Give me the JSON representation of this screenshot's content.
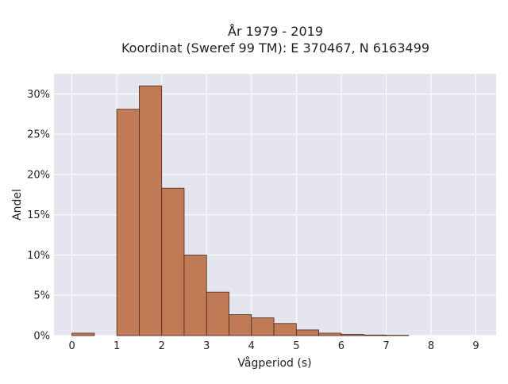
{
  "chart_data": {
    "type": "bar",
    "title_line1": "År 1979 - 2019",
    "title_line2": "Koordinat (Sweref 99 TM): E 370467, N 6163499",
    "xlabel": "Vågperiod (s)",
    "ylabel": "Andel",
    "xlim": [
      -0.4,
      9.45
    ],
    "ylim": [
      0,
      32.5
    ],
    "xticks": [
      0,
      1,
      2,
      3,
      4,
      5,
      6,
      7,
      8,
      9
    ],
    "yticks": [
      0,
      5,
      10,
      15,
      20,
      25,
      30
    ],
    "ytick_format": "percent",
    "bin_width": 0.5,
    "bins": [
      {
        "x0": 0.0,
        "value": 0.3
      },
      {
        "x0": 0.5,
        "value": 0.0
      },
      {
        "x0": 1.0,
        "value": 28.1
      },
      {
        "x0": 1.5,
        "value": 31.0
      },
      {
        "x0": 2.0,
        "value": 18.3
      },
      {
        "x0": 2.5,
        "value": 10.0
      },
      {
        "x0": 3.0,
        "value": 5.4
      },
      {
        "x0": 3.5,
        "value": 2.6
      },
      {
        "x0": 4.0,
        "value": 2.2
      },
      {
        "x0": 4.5,
        "value": 1.5
      },
      {
        "x0": 5.0,
        "value": 0.7
      },
      {
        "x0": 5.5,
        "value": 0.3
      },
      {
        "x0": 6.0,
        "value": 0.15
      },
      {
        "x0": 6.5,
        "value": 0.07
      },
      {
        "x0": 7.0,
        "value": 0.04
      },
      {
        "x0": 7.5,
        "value": 0.0
      }
    ],
    "grid": true,
    "colors": {
      "bar_fill": "#c07a55",
      "bar_stroke": "#4a2a18",
      "plot_background": "#e5e5ef",
      "grid": "#ffffff"
    }
  }
}
